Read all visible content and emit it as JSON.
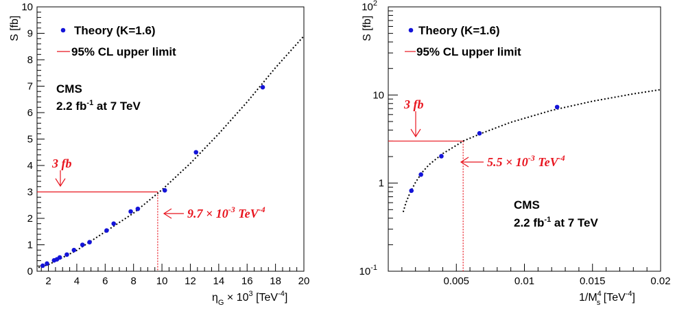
{
  "chart_data": [
    {
      "type": "scatter",
      "xlabel": "η_G × 10^3 [TeV^-4]",
      "ylabel": "S [fb]",
      "xlim": [
        1.2,
        20
      ],
      "ylim": [
        0,
        10
      ],
      "xticks": [
        "2",
        "4",
        "6",
        "8",
        "10",
        "12",
        "14",
        "16",
        "18",
        "20"
      ],
      "yticks": [
        "0",
        "1",
        "2",
        "3",
        "4",
        "5",
        "6",
        "7",
        "8",
        "9",
        "10"
      ],
      "legend": {
        "placement": "top-left",
        "theory": "Theory (K=1.6)",
        "limit": "95% CL upper limit"
      },
      "cms_label": "CMS",
      "lumi_label": "2.2 fb-1 at 7 TeV",
      "series": [
        {
          "name": "Theory (K=1.6)",
          "x": [
            1.6,
            1.9,
            2.4,
            2.6,
            2.8,
            3.3,
            3.8,
            4.4,
            4.9,
            6.1,
            6.6,
            7.8,
            8.3,
            10.2,
            12.4,
            17.1
          ],
          "y": [
            0.21,
            0.29,
            0.41,
            0.45,
            0.52,
            0.63,
            0.8,
            1.0,
            1.1,
            1.54,
            1.8,
            2.26,
            2.36,
            3.06,
            4.5,
            6.96
          ]
        }
      ],
      "fit_curve": {
        "x": [
          1.3,
          2,
          4,
          6,
          8,
          10,
          12,
          14,
          16,
          18,
          20
        ],
        "y": [
          0.14,
          0.25,
          0.79,
          1.49,
          2.2,
          3.08,
          4.08,
          5.2,
          6.4,
          7.7,
          8.9
        ]
      },
      "limit_y": 3,
      "limit_x": 9.7,
      "annotations": {
        "limit_label": "3 fb",
        "value_label": "9.7 × 10-3 TeV-4"
      }
    },
    {
      "type": "scatter",
      "xlabel": "1/M_s^4 [TeV^-4]",
      "ylabel": "S [fb]",
      "xlim": [
        0,
        0.02
      ],
      "ylim": [
        0.1,
        100
      ],
      "yscale": "log",
      "xticks": [
        "0.005",
        "0.01",
        "0.015",
        "0.02"
      ],
      "yticks": [
        "10-1",
        "1",
        "10",
        "102"
      ],
      "legend": {
        "placement": "top-left",
        "theory": "Theory (K=1.6)",
        "limit": "95% CL upper limit"
      },
      "cms_label": "CMS",
      "lumi_label": "2.2 fb-1 at 7 TeV",
      "series": [
        {
          "name": "Theory (K=1.6)",
          "x": [
            0.0017,
            0.0024,
            0.0039,
            0.0067,
            0.0124
          ],
          "y": [
            0.82,
            1.25,
            2.02,
            3.67,
            7.3
          ]
        }
      ],
      "fit_curve": {
        "x": [
          0.0011,
          0.0013,
          0.0016,
          0.002,
          0.0025,
          0.003,
          0.004,
          0.005,
          0.0055,
          0.007,
          0.009,
          0.012,
          0.015,
          0.018,
          0.02
        ],
        "y": [
          0.47,
          0.6,
          0.78,
          1.02,
          1.33,
          1.62,
          2.16,
          2.68,
          3.0,
          3.75,
          4.9,
          6.7,
          8.5,
          10.3,
          11.5
        ]
      },
      "limit_y": 3,
      "limit_x": 0.0055,
      "annotations": {
        "limit_label": "3 fb",
        "value_label": "5.5 × 10-3 TeV-4"
      }
    }
  ]
}
